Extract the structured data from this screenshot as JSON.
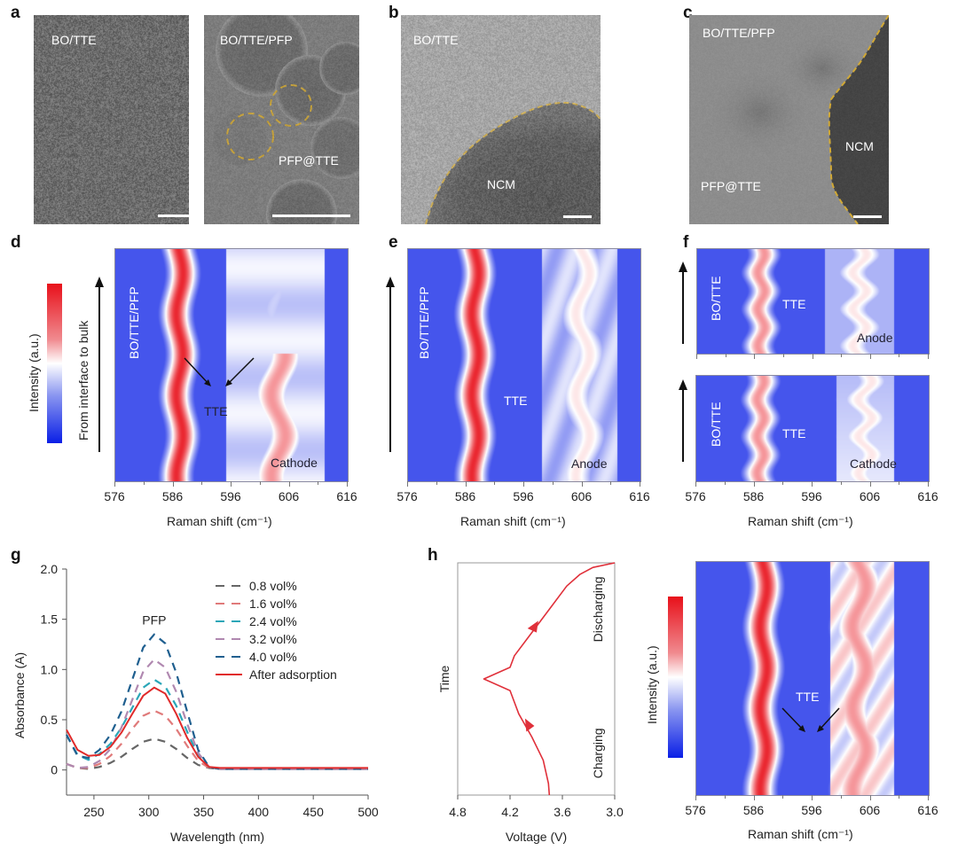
{
  "panels": {
    "a": {
      "label": "a",
      "left_title": "BO/TTE",
      "right_title": "BO/TTE/PFP",
      "right_annot": "PFP@TTE"
    },
    "b": {
      "label": "b",
      "title": "BO/TTE",
      "annot": "NCM"
    },
    "c": {
      "label": "c",
      "title": "BO/TTE/PFP",
      "annot_ncm": "NCM",
      "annot_pfp": "PFP@TTE"
    },
    "d": {
      "label": "d",
      "colorbar_label": "Intensity (a.u.)",
      "arrow_label": "From interface to bulk",
      "side_label": "BO/TTE/PFP",
      "annot_tte": "TTE",
      "annot_region": "Cathode"
    },
    "e": {
      "label": "e",
      "side_label": "BO/TTE/PFP",
      "annot_tte": "TTE",
      "annot_region": "Anode"
    },
    "f": {
      "label": "f",
      "top": {
        "side_label": "BO/TTE",
        "annot_tte": "TTE",
        "annot_region": "Anode"
      },
      "bottom": {
        "side_label": "BO/TTE",
        "annot_tte": "TTE",
        "annot_region": "Cathode"
      }
    },
    "g": {
      "label": "g"
    },
    "h": {
      "label": "h",
      "colorbar_label": "Intensity (a.u.)",
      "annot_tte": "TTE"
    }
  },
  "colors": {
    "heat_low": "#0a1fe6",
    "heat_mid": "#ffffff",
    "heat_high": "#e8101a",
    "boundary": "#e8b21a"
  },
  "chart_data": [
    {
      "id": "d",
      "type": "heatmap",
      "title": "",
      "xlabel": "Raman shift (cm⁻¹)",
      "ylabel": "From interface to bulk",
      "xlim": [
        576,
        616
      ],
      "xticks": [
        "576",
        "586",
        "596",
        "606",
        "616"
      ],
      "bands": [
        {
          "center": 587,
          "intensity": "high"
        },
        {
          "center": 604,
          "intensity": "medium",
          "rows": "lower half"
        }
      ]
    },
    {
      "id": "e",
      "type": "heatmap",
      "xlabel": "Raman shift (cm⁻¹)",
      "xlim": [
        576,
        616
      ],
      "xticks": [
        "576",
        "586",
        "596",
        "606",
        "616"
      ],
      "bands": [
        {
          "center": 587.5,
          "intensity": "high"
        },
        {
          "center": 606,
          "intensity": "low"
        }
      ]
    },
    {
      "id": "f-top",
      "type": "heatmap",
      "xlim": [
        576,
        616
      ],
      "xticks": [],
      "bands": [
        {
          "center": 587,
          "intensity": "medium"
        },
        {
          "center": 604,
          "intensity": "low"
        }
      ]
    },
    {
      "id": "f-bottom",
      "type": "heatmap",
      "xlabel": "Raman shift (cm⁻¹)",
      "xlim": [
        576,
        616
      ],
      "xticks": [
        "576",
        "586",
        "596",
        "606",
        "616"
      ],
      "bands": [
        {
          "center": 587,
          "intensity": "medium"
        },
        {
          "center": 605,
          "intensity": "low"
        }
      ]
    },
    {
      "id": "g",
      "type": "line",
      "xlabel": "Wavelength (nm)",
      "ylabel": "Absorbance (A)",
      "xlim": [
        225,
        500
      ],
      "ylim": [
        -0.25,
        2.0
      ],
      "xticks": [
        "250",
        "300",
        "350",
        "400",
        "450",
        "500"
      ],
      "yticks": [
        "0",
        "0.5",
        "1.0",
        "1.5",
        "2.0"
      ],
      "annotation": "PFP",
      "x": [
        225,
        235,
        245,
        255,
        265,
        275,
        285,
        295,
        305,
        315,
        325,
        335,
        345,
        355,
        365,
        400,
        450,
        500
      ],
      "series": [
        {
          "name": "0.8 vol%",
          "color": "#666666",
          "dash": true,
          "values": [
            0.06,
            0.02,
            0.01,
            0.03,
            0.07,
            0.13,
            0.21,
            0.28,
            0.31,
            0.28,
            0.21,
            0.12,
            0.05,
            0.02,
            0.01,
            0.01,
            0.01,
            0.01
          ]
        },
        {
          "name": "1.6 vol%",
          "color": "#e07a7a",
          "dash": true,
          "values": [
            0.06,
            0.02,
            0.02,
            0.06,
            0.14,
            0.26,
            0.41,
            0.54,
            0.59,
            0.54,
            0.41,
            0.24,
            0.09,
            0.02,
            0.01,
            0.01,
            0.01,
            0.01
          ]
        },
        {
          "name": "2.4 vol%",
          "color": "#2aa6b8",
          "dash": true,
          "values": [
            0.35,
            0.15,
            0.1,
            0.16,
            0.26,
            0.42,
            0.62,
            0.82,
            0.9,
            0.83,
            0.64,
            0.38,
            0.14,
            0.03,
            0.01,
            0.01,
            0.01,
            0.01
          ]
        },
        {
          "name": "3.2 vol%",
          "color": "#b088b0",
          "dash": true,
          "values": [
            0.06,
            0.02,
            0.03,
            0.09,
            0.21,
            0.42,
            0.7,
            0.98,
            1.1,
            1.02,
            0.78,
            0.46,
            0.17,
            0.03,
            0.01,
            0.01,
            0.01,
            0.01
          ]
        },
        {
          "name": "4.0 vol%",
          "color": "#1f5f8f",
          "dash": true,
          "values": [
            0.35,
            0.14,
            0.12,
            0.2,
            0.35,
            0.58,
            0.9,
            1.22,
            1.35,
            1.26,
            0.97,
            0.58,
            0.2,
            0.03,
            0.01,
            0.01,
            0.01,
            0.01
          ]
        },
        {
          "name": "After adsorption",
          "color": "#e02a2a",
          "dash": false,
          "values": [
            0.4,
            0.2,
            0.14,
            0.15,
            0.23,
            0.37,
            0.56,
            0.74,
            0.82,
            0.76,
            0.56,
            0.32,
            0.13,
            0.03,
            0.02,
            0.02,
            0.02,
            0.02
          ]
        }
      ],
      "legend": "top-right"
    },
    {
      "id": "h-voltage",
      "type": "line",
      "xlabel": "Voltage (V)",
      "ylabel": "Time",
      "xlim": [
        4.8,
        3.0
      ],
      "xticks": [
        "4.8",
        "4.2",
        "3.6",
        "3.0"
      ],
      "annotations": [
        "Charging",
        "Discharging"
      ],
      "time": [
        0,
        0.05,
        0.15,
        0.25,
        0.35,
        0.45,
        0.5,
        0.55,
        0.6,
        0.7,
        0.8,
        0.9,
        0.95,
        0.98,
        1.0
      ],
      "voltage": [
        3.75,
        3.76,
        3.82,
        3.95,
        4.1,
        4.2,
        4.5,
        4.2,
        4.15,
        3.95,
        3.75,
        3.55,
        3.4,
        3.25,
        3.0
      ]
    },
    {
      "id": "h-map",
      "type": "heatmap",
      "xlabel": "Raman shift (cm⁻¹)",
      "xlim": [
        576,
        616
      ],
      "xticks": [
        "576",
        "586",
        "596",
        "606",
        "616"
      ],
      "bands": [
        {
          "center": 587.5,
          "intensity": "high"
        },
        {
          "center": 604,
          "intensity": "medium"
        }
      ]
    }
  ]
}
